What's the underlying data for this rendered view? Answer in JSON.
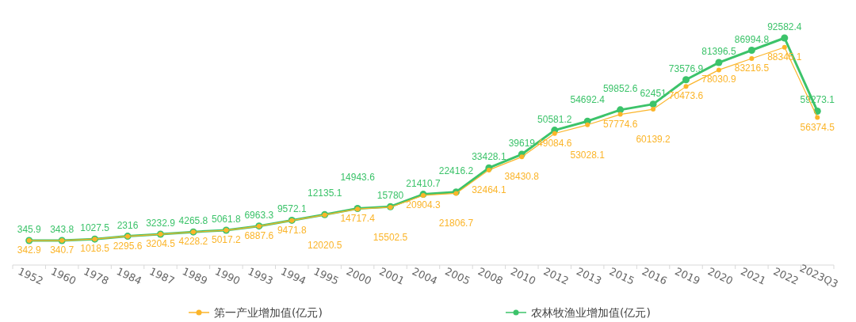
{
  "chart_data": {
    "type": "line",
    "categories": [
      "1952",
      "1960",
      "1978",
      "1984",
      "1987",
      "1989",
      "1990",
      "1993",
      "1994",
      "1995",
      "2000",
      "2001",
      "2004",
      "2005",
      "2008",
      "2010",
      "2012",
      "2013",
      "2015",
      "2016",
      "2019",
      "2020",
      "2021",
      "2022",
      "2023Q3"
    ],
    "series": [
      {
        "name": "第一产业增加值(亿元)",
        "color": "#fbb52a",
        "values": [
          342.9,
          340.7,
          1018.5,
          2295.6,
          3204.5,
          4228.2,
          5017.2,
          6887.6,
          9471.8,
          12020.5,
          14717.4,
          15502.5,
          20904.3,
          21806.7,
          32464.1,
          38430.8,
          49084.6,
          53028.1,
          57774.6,
          60139.2,
          70473.6,
          78030.9,
          83216.5,
          88345.1,
          56374.5
        ]
      },
      {
        "name": "农林牧渔业增加值(亿元)",
        "color": "#3cc36a",
        "values": [
          345.9,
          343.8,
          1027.5,
          2316,
          3232.9,
          4265.8,
          5061.8,
          6963.3,
          9572.1,
          12135.1,
          14943.6,
          15780,
          21410.7,
          22416.2,
          33428.1,
          39619,
          50581.2,
          54692.4,
          59852.6,
          62451,
          73576.9,
          81396.5,
          86994.8,
          92582.4,
          59273.1
        ]
      }
    ],
    "data_labels": true,
    "marker": "circle",
    "line_style": "solid",
    "legend": "bottom"
  }
}
